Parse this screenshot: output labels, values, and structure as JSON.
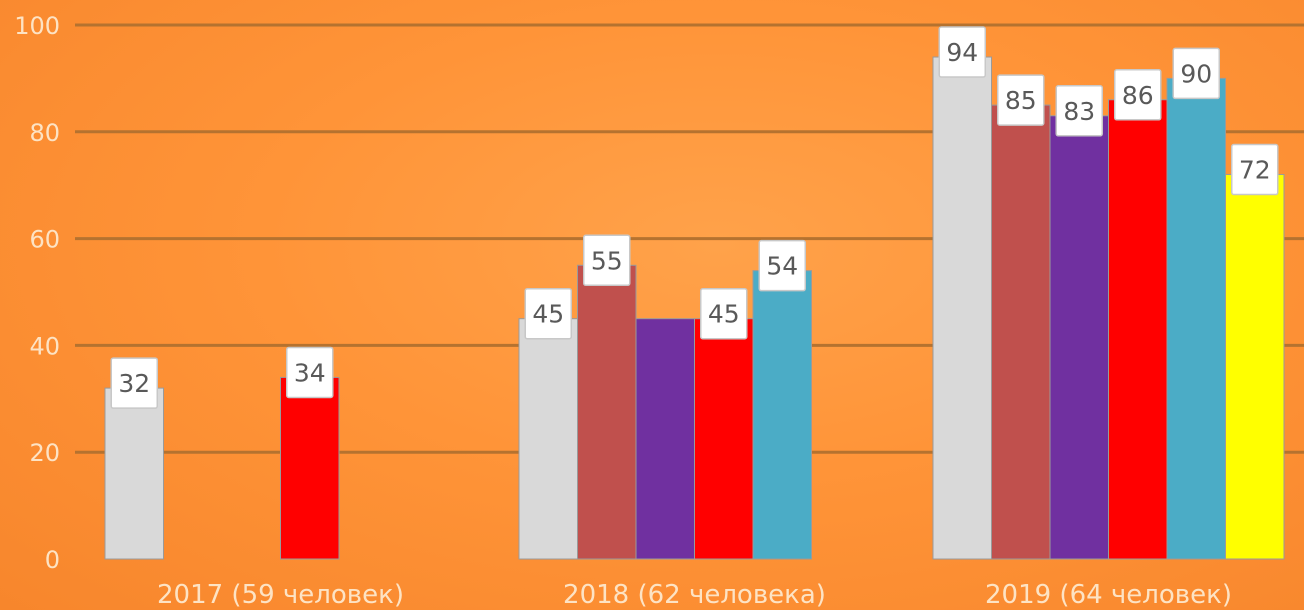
{
  "chart_data": {
    "type": "bar",
    "title": "",
    "xlabel": "",
    "ylabel": "",
    "ylim": [
      0,
      100
    ],
    "y_ticks": [
      "0",
      "20",
      "40",
      "60",
      "80",
      "100"
    ],
    "grid": true,
    "legend": "none",
    "categories": [
      "2017 (59 человек)",
      "2018 (62 человека)",
      "2019 (64 человек)"
    ],
    "series": [
      {
        "color": "#d9d9d9",
        "values": [
          32,
          45,
          94
        ]
      },
      {
        "color": "#c0504d",
        "values": [
          null,
          55,
          85
        ]
      },
      {
        "color": "#7030a0",
        "values": [
          null,
          45,
          83
        ]
      },
      {
        "color": "#ff0000",
        "values": [
          34,
          45,
          86
        ]
      },
      {
        "color": "#4bacc6",
        "values": [
          null,
          54,
          90
        ]
      },
      {
        "color": "#ffff00",
        "values": [
          null,
          null,
          72
        ]
      }
    ],
    "data_labels": [
      [
        "32",
        "",
        "",
        "34",
        "",
        ""
      ],
      [
        "45",
        "55",
        "",
        "45",
        "54",
        ""
      ],
      [
        "94",
        "85",
        "83",
        "86",
        "90",
        "72"
      ]
    ]
  },
  "colors": {
    "gridline": "#b5722f",
    "axis_text": "#fde3c4",
    "label_text": "#595959"
  }
}
